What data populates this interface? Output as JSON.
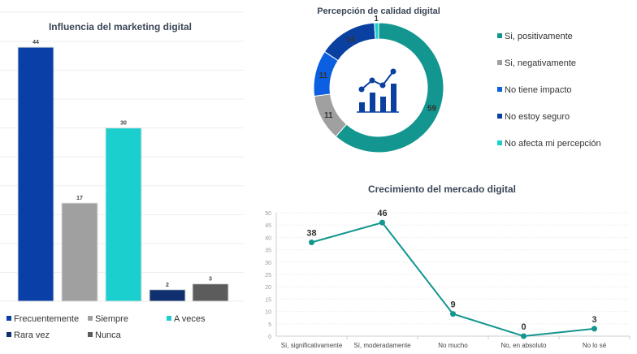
{
  "chart_data": [
    {
      "type": "bar",
      "title": "Influencia del marketing digital",
      "categories": [
        "Frecuentemente",
        "Siempre",
        "A veces",
        "Rara vez",
        "Nunca"
      ],
      "values": [
        44,
        17,
        30,
        2,
        3
      ],
      "ylim": [
        0,
        45
      ],
      "grid": true,
      "legend": "bottom",
      "colors": [
        "#0a3fa8",
        "#a0a0a0",
        "#1ccfcf",
        "#0f2f6e",
        "#5c5c5c"
      ]
    },
    {
      "type": "pie",
      "title": "Percepción de calidad digital",
      "donut": true,
      "categories": [
        "Si, positivamente",
        "Si, negativamente",
        "No tiene impacto",
        "No estoy seguro",
        "No afecta mi percepción"
      ],
      "values": [
        59,
        11,
        11,
        14,
        1
      ],
      "legend": "right",
      "colors": [
        "#13968f",
        "#a0a0a0",
        "#0b5fe0",
        "#0a40a0",
        "#1ccfcf"
      ],
      "center_icon": "chart-growth-icon"
    },
    {
      "type": "line",
      "title": "Crecimiento del mercado digital",
      "categories": [
        "Sí, significativamente",
        "Sí, moderadamente",
        "No mucho",
        "No, en absoluto",
        "No lo sé"
      ],
      "values": [
        38,
        46,
        9,
        0,
        3
      ],
      "ylim": [
        0,
        50
      ],
      "yticks": [
        0,
        5,
        10,
        15,
        20,
        25,
        30,
        35,
        40,
        45,
        50
      ],
      "color": "#13968f"
    }
  ]
}
